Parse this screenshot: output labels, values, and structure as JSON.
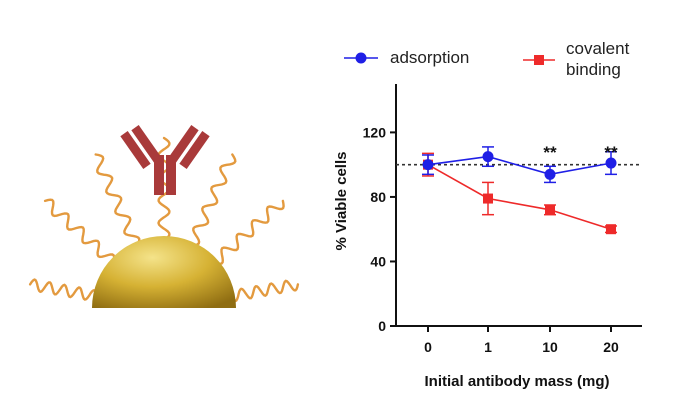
{
  "colors": {
    "adsorption": "#1f1fe6",
    "covalent": "#ee2a2a",
    "axis": "#111111",
    "reference_line": "#333333",
    "antibody": "#a93a3a",
    "peg": "#e39a3f",
    "gold_light": "#f4e38a",
    "gold_mid": "#d6b234",
    "gold_dark": "#8f6d12"
  },
  "illustration": {
    "antibody_icon": "antibody-icon",
    "nanoparticle_icon": "gold-nanoparticle-icon",
    "polymer_icon": "peg-chain-icon"
  },
  "chart_data": {
    "type": "line",
    "xlabel": "Initial antibody mass (mg)",
    "ylabel": "% Viable cells",
    "categories": [
      "0",
      "1",
      "10",
      "20"
    ],
    "ylim": [
      0,
      150
    ],
    "yticks": [
      0,
      40,
      80,
      120
    ],
    "reference_line": 100,
    "grid": false,
    "legend_position": "top",
    "series": [
      {
        "name": "adsorption",
        "legend_lines": [
          "adsorption"
        ],
        "marker": "circle",
        "color": "#1f1fe6",
        "values": [
          100,
          105,
          94,
          101
        ],
        "errors": [
          6,
          6,
          5,
          7
        ]
      },
      {
        "name": "covalent binding",
        "legend_lines": [
          "covalent",
          "binding"
        ],
        "marker": "square",
        "color": "#ee2a2a",
        "values": [
          100,
          79,
          72,
          60
        ],
        "errors": [
          7,
          10,
          3,
          2
        ]
      }
    ],
    "annotations": [
      {
        "category": "10",
        "text": "**"
      },
      {
        "category": "20",
        "text": "**"
      }
    ]
  }
}
